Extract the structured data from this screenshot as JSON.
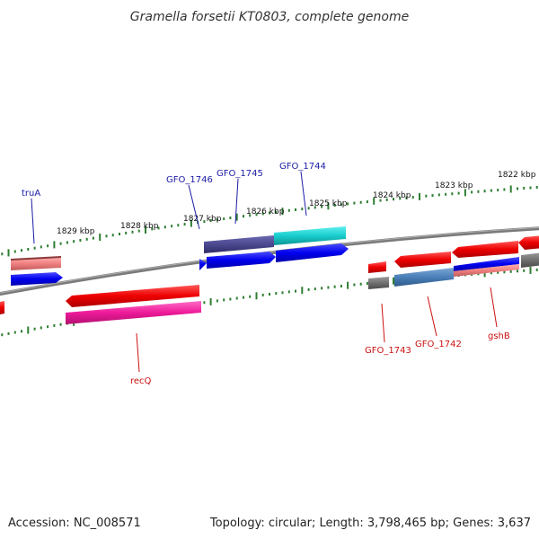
{
  "title": "Gramella forsetii KT0803, complete genome",
  "footer": {
    "accession": "Accession: NC_008571",
    "stats": "Topology: circular; Length: 3,798,465 bp; Genes: 3,637"
  },
  "colors": {
    "backbone": "#8a8a8a",
    "ticks": "#2e7d32",
    "label_blue": "#1a1aa6",
    "label_red": "#cc1111"
  },
  "scale": {
    "ticks": [
      {
        "label": "1829 kbp"
      },
      {
        "label": "1828 kbp"
      },
      {
        "label": "1827 kbp"
      },
      {
        "label": "1826 kbp"
      },
      {
        "label": "1825 kbp"
      },
      {
        "label": "1824 kbp"
      },
      {
        "label": "1823 kbp"
      },
      {
        "label": "1822 kbp"
      }
    ]
  },
  "labels": {
    "truA": "truA",
    "GFO_1746": "GFO_1746",
    "GFO_1745": "GFO_1745",
    "GFO_1744": "GFO_1744",
    "recQ": "recQ",
    "GFO_1743": "GFO_1743",
    "GFO_1742": "GFO_1742",
    "gshB": "gshB"
  }
}
